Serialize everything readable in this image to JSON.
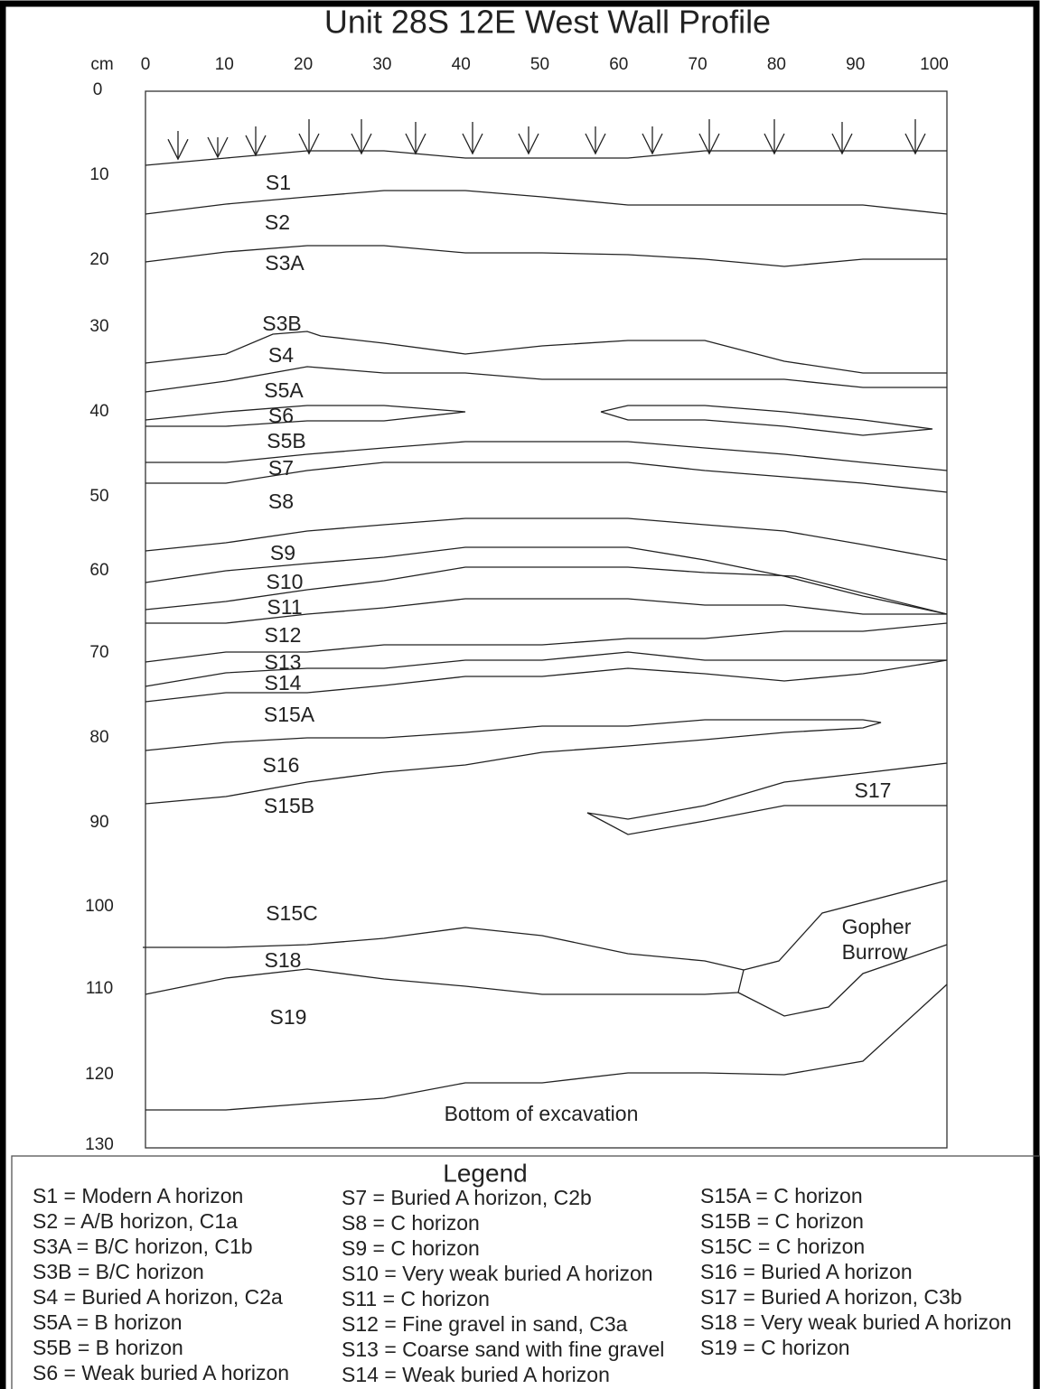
{
  "title": "Unit 28S 12E West Wall Profile",
  "axis": {
    "unit": "cm",
    "x_labels": [
      "0",
      "10",
      "20",
      "30",
      "40",
      "50",
      "60",
      "70",
      "80",
      "90",
      "100"
    ],
    "y_labels": [
      "0",
      "10",
      "20",
      "30",
      "40",
      "50",
      "60",
      "70",
      "80",
      "90",
      "100",
      "110",
      "120",
      "130"
    ]
  },
  "layers": [
    "S1",
    "S2",
    "S3A",
    "S3B",
    "S4",
    "S5A",
    "S6",
    "S5B",
    "S7",
    "S8",
    "S9",
    "S10",
    "S11",
    "S12",
    "S13",
    "S14",
    "S15A",
    "S16",
    "S15B",
    "S17",
    "S15C",
    "S18",
    "S19"
  ],
  "gopher_burrow": [
    "Gopher",
    "Burrow"
  ],
  "bottom_label": "Bottom of excavation",
  "legend": {
    "title": "Legend",
    "columns": [
      [
        "S1 = Modern A horizon",
        "S2 = A/B horizon, C1a",
        "S3A = B/C horizon, C1b",
        "S3B = B/C horizon",
        "S4 = Buried A horizon, C2a",
        "S5A = B horizon",
        "S5B = B horizon",
        "S6 = Weak buried A horizon"
      ],
      [
        "S7 = Buried A horizon, C2b",
        "S8 = C horizon",
        "S9 = C horizon",
        "S10 = Very weak buried A horizon",
        "S11 = C horizon",
        "S12 = Fine gravel in sand, C3a",
        "S13 = Coarse sand with fine gravel",
        "S14 = Weak buried A horizon"
      ],
      [
        "S15A = C horizon",
        "S15B = C horizon",
        "S15C = C horizon",
        "S16 = Buried A horizon",
        "S17 = Buried A horizon, C3b",
        "S18 = Very weak buried A horizon",
        "S19 = C horizon"
      ]
    ]
  }
}
